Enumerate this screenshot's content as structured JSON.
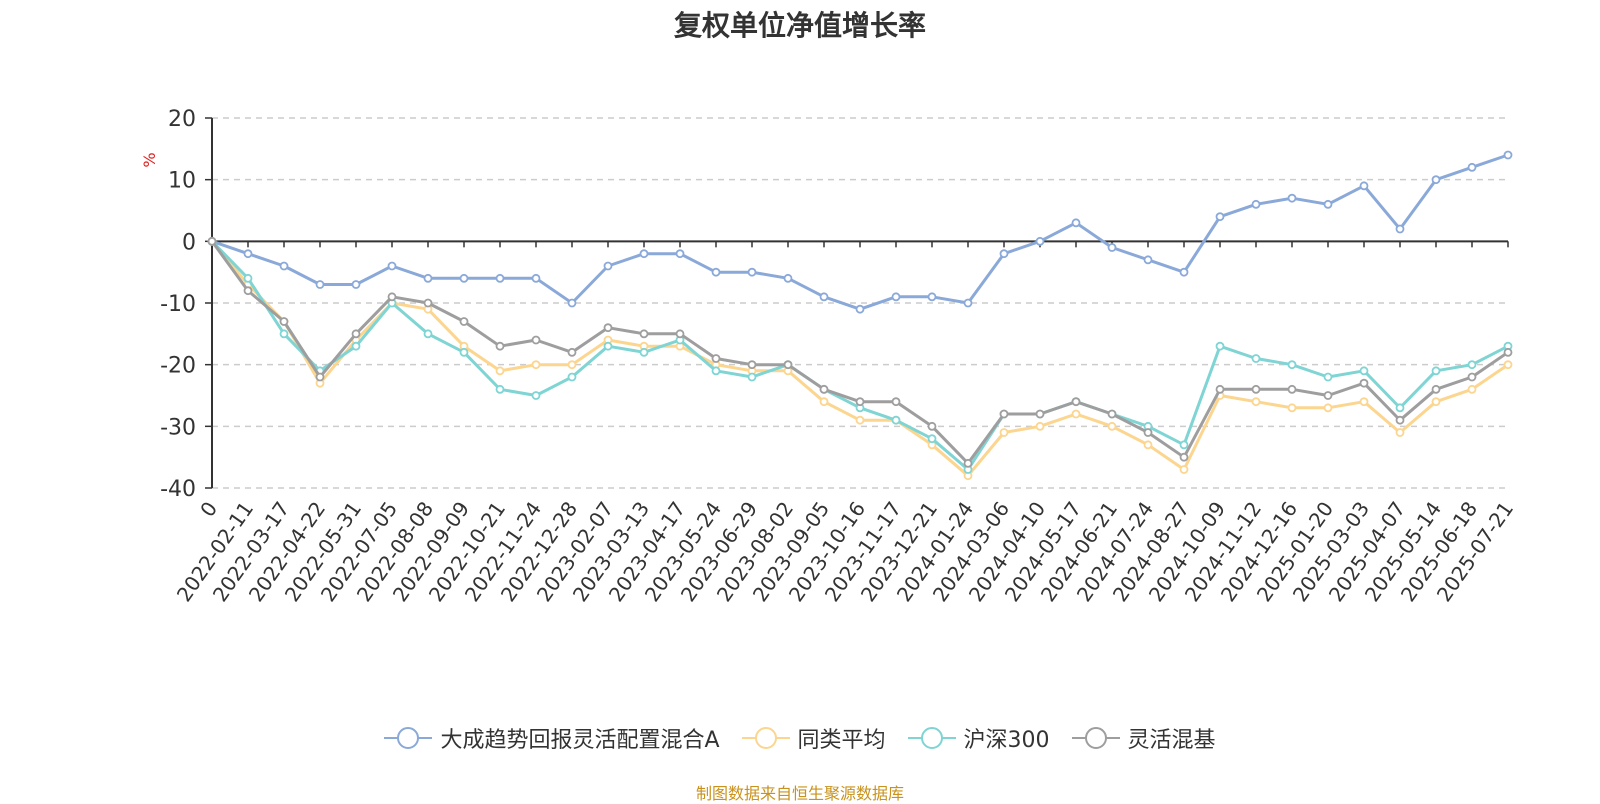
{
  "chart_data": {
    "type": "line",
    "title": "复权单位净值增长率",
    "ylabel": "%",
    "ylim": [
      -40,
      20
    ],
    "yticks": [
      20,
      10,
      0,
      -10,
      -20,
      -30,
      -40
    ],
    "x_tick_labels": [
      "0",
      "2022-02-11",
      "2022-03-17",
      "2022-04-22",
      "2022-05-31",
      "2022-07-05",
      "2022-08-08",
      "2022-09-09",
      "2022-10-21",
      "2022-11-24",
      "2022-12-28",
      "2023-02-07",
      "2023-03-13",
      "2023-04-17",
      "2023-05-24",
      "2023-06-29",
      "2023-08-02",
      "2023-09-05",
      "2023-10-16",
      "2023-11-17",
      "2023-12-21",
      "2024-01-24",
      "2024-03-06",
      "2024-04-10",
      "2024-05-17",
      "2024-06-21",
      "2024-07-24",
      "2024-08-27",
      "2024-10-09",
      "2024-11-12",
      "2024-12-16",
      "2025-01-20",
      "2025-03-03",
      "2025-04-07",
      "2025-05-14",
      "2025-06-18",
      "2025-07-21"
    ],
    "grid": "horizontal-dashed",
    "legend": "bottom",
    "series": [
      {
        "name": "大成趋势回报灵活配置混合A",
        "color": "#8aa9d9",
        "values": [
          0,
          -2,
          -4,
          -7,
          -7,
          -4,
          -6,
          -6,
          -6,
          -6,
          -10,
          -4,
          -2,
          -2,
          -5,
          -5,
          -6,
          -9,
          -11,
          -9,
          -9,
          -10,
          -2,
          0,
          3,
          -1,
          -3,
          -5,
          4,
          6,
          7,
          6,
          9,
          2,
          10,
          12,
          14
        ]
      },
      {
        "name": "同类平均",
        "color": "#fcd58f",
        "values": [
          0,
          -7,
          -13,
          -23,
          -16,
          -10,
          -11,
          -17,
          -21,
          -20,
          -20,
          -16,
          -17,
          -17,
          -20,
          -21,
          -21,
          -26,
          -29,
          -29,
          -33,
          -38,
          -31,
          -30,
          -28,
          -30,
          -33,
          -37,
          -25,
          -26,
          -27,
          -27,
          -26,
          -31,
          -26,
          -24,
          -20
        ]
      },
      {
        "name": "沪深300",
        "color": "#7fd4d4",
        "values": [
          0,
          -6,
          -15,
          -21,
          -17,
          -10,
          -15,
          -18,
          -24,
          -25,
          -22,
          -17,
          -18,
          -16,
          -21,
          -22,
          -20,
          -24,
          -27,
          -29,
          -32,
          -37,
          -28,
          -28,
          -26,
          -28,
          -30,
          -33,
          -17,
          -19,
          -20,
          -22,
          -21,
          -27,
          -21,
          -20,
          -17
        ]
      },
      {
        "name": "灵活混基",
        "color": "#9e9e9e",
        "values": [
          0,
          -8,
          -13,
          -22,
          -15,
          -9,
          -10,
          -13,
          -17,
          -16,
          -18,
          -14,
          -15,
          -15,
          -19,
          -20,
          -20,
          -24,
          -26,
          -26,
          -30,
          -36,
          -28,
          -28,
          -26,
          -28,
          -31,
          -35,
          -24,
          -24,
          -24,
          -25,
          -23,
          -29,
          -24,
          -22,
          -18
        ]
      }
    ]
  },
  "footer": {
    "source": "制图数据来自恒生聚源数据库"
  }
}
